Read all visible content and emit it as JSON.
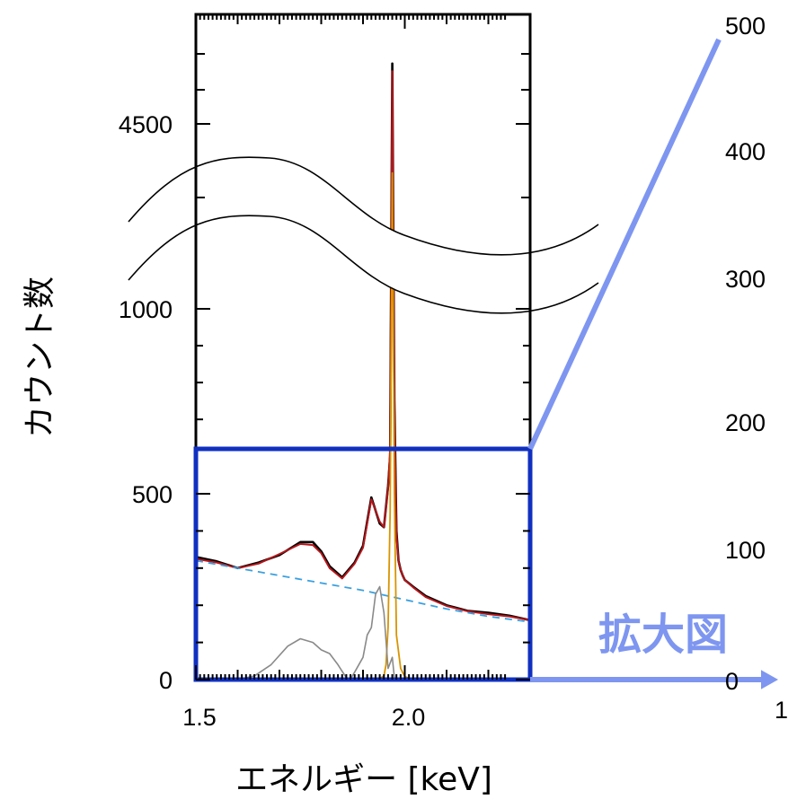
{
  "chart_data": {
    "type": "line",
    "xlabel": "エネルギー [keV]",
    "ylabel": "カウント数",
    "xlim": [
      1.5,
      2.3
    ],
    "ylim": [
      0,
      4900
    ],
    "y_break": [
      620,
      4250
    ],
    "x_ticks": [
      "1.5",
      "2.0"
    ],
    "y_ticks": [
      "0",
      "500",
      "1000",
      "4500"
    ],
    "zoom_axis_ticks": [
      "500",
      "400",
      "300",
      "200",
      "100",
      "0"
    ],
    "zoom_axis_x_tick": "1",
    "zoom_label": "拡大図",
    "colors": {
      "data": "#000000",
      "fit": "#b5161b",
      "background": "#3aa0e0",
      "gaussian": "#d89400",
      "components": "#8a8a8a",
      "zoom_box": "#1030c0",
      "zoom_connector": "#7e96f0"
    },
    "series": [
      {
        "values": {
          "x": [
            1.5,
            1.55,
            1.6,
            1.65,
            1.7,
            1.75,
            1.78,
            1.8,
            1.82,
            1.85,
            1.88,
            1.9,
            1.92,
            1.94,
            1.95,
            1.96,
            1.965,
            1.97,
            1.975,
            1.98,
            1.985,
            1.99,
            1.995,
            2.0,
            2.02,
            2.05,
            2.1,
            2.15,
            2.2,
            2.25,
            2.3
          ],
          "y": [
            330,
            318,
            300,
            315,
            335,
            370,
            370,
            345,
            305,
            275,
            315,
            360,
            490,
            420,
            410,
            520,
            600,
            4900,
            750,
            400,
            320,
            295,
            280,
            268,
            250,
            225,
            200,
            185,
            180,
            172,
            160
          ]
        }
      },
      {
        "values": {
          "x": [
            1.5,
            1.55,
            1.6,
            1.65,
            1.7,
            1.75,
            1.78,
            1.8,
            1.82,
            1.85,
            1.88,
            1.9,
            1.92,
            1.94,
            1.95,
            1.96,
            1.965,
            1.97,
            1.975,
            1.98,
            1.985,
            1.99,
            1.995,
            2.0,
            2.02,
            2.05,
            2.1,
            2.15,
            2.2,
            2.25,
            2.3
          ],
          "y": [
            325,
            315,
            300,
            312,
            338,
            365,
            362,
            340,
            300,
            272,
            312,
            355,
            485,
            425,
            410,
            515,
            620,
            4850,
            720,
            390,
            318,
            295,
            280,
            268,
            248,
            222,
            198,
            184,
            176,
            170,
            160
          ]
        }
      },
      {
        "values": {
          "x": [
            1.5,
            1.6,
            1.7,
            1.8,
            1.9,
            2.0,
            2.1,
            2.2,
            2.3
          ],
          "y": [
            320,
            300,
            280,
            260,
            240,
            215,
            190,
            170,
            155
          ]
        }
      },
      {
        "values": {
          "x": [
            1.92,
            1.94,
            1.95,
            1.955,
            1.96,
            1.965,
            1.97,
            1.975,
            1.98,
            1.99,
            2.0,
            2.02
          ],
          "y": [
            0,
            3,
            10,
            40,
            140,
            450,
            4000,
            500,
            120,
            30,
            8,
            0
          ]
        }
      },
      {
        "values": {
          "x": [
            1.6,
            1.64,
            1.68,
            1.72,
            1.75,
            1.78,
            1.8,
            1.82,
            1.84,
            1.86,
            1.87,
            1.88,
            1.9,
            1.91,
            1.92,
            1.93,
            1.94,
            1.95,
            1.96,
            1.97,
            1.975,
            1.98
          ],
          "y": [
            0,
            10,
            40,
            90,
            110,
            100,
            80,
            70,
            40,
            5,
            2,
            20,
            60,
            120,
            140,
            230,
            250,
            180,
            30,
            60,
            5,
            0
          ]
        }
      }
    ]
  }
}
